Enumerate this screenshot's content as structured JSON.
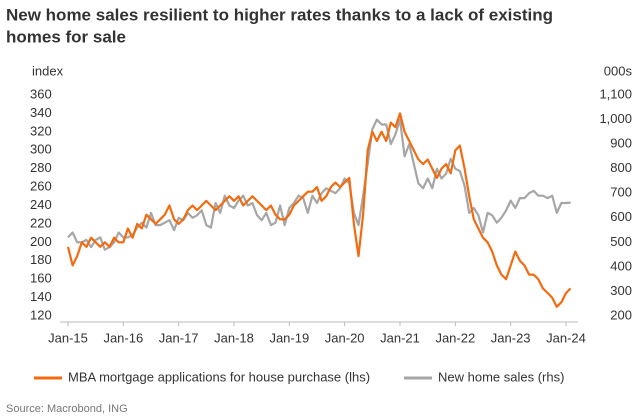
{
  "chart_data": {
    "type": "line",
    "title": [
      "New home sales resilient to higher rates thanks to a lack of existing",
      "homes for sale"
    ],
    "y_label": "index",
    "y2_label": "000s",
    "source": "Source: Macrobond, ING",
    "x": [
      "2015-01",
      "2015-02",
      "2015-03",
      "2015-04",
      "2015-05",
      "2015-06",
      "2015-07",
      "2015-08",
      "2015-09",
      "2015-10",
      "2015-11",
      "2015-12",
      "2016-01",
      "2016-02",
      "2016-03",
      "2016-04",
      "2016-05",
      "2016-06",
      "2016-07",
      "2016-08",
      "2016-09",
      "2016-10",
      "2016-11",
      "2016-12",
      "2017-01",
      "2017-02",
      "2017-03",
      "2017-04",
      "2017-05",
      "2017-06",
      "2017-07",
      "2017-08",
      "2017-09",
      "2017-10",
      "2017-11",
      "2017-12",
      "2018-01",
      "2018-02",
      "2018-03",
      "2018-04",
      "2018-05",
      "2018-06",
      "2018-07",
      "2018-08",
      "2018-09",
      "2018-10",
      "2018-11",
      "2018-12",
      "2019-01",
      "2019-02",
      "2019-03",
      "2019-04",
      "2019-05",
      "2019-06",
      "2019-07",
      "2019-08",
      "2019-09",
      "2019-10",
      "2019-11",
      "2019-12",
      "2020-01",
      "2020-02",
      "2020-03",
      "2020-04",
      "2020-05",
      "2020-06",
      "2020-07",
      "2020-08",
      "2020-09",
      "2020-10",
      "2020-11",
      "2020-12",
      "2021-01",
      "2021-02",
      "2021-03",
      "2021-04",
      "2021-05",
      "2021-06",
      "2021-07",
      "2021-08",
      "2021-09",
      "2021-10",
      "2021-11",
      "2021-12",
      "2022-01",
      "2022-02",
      "2022-03",
      "2022-04",
      "2022-05",
      "2022-06",
      "2022-07",
      "2022-08",
      "2022-09",
      "2022-10",
      "2022-11",
      "2022-12",
      "2023-01",
      "2023-02",
      "2023-03",
      "2023-04",
      "2023-05",
      "2023-06",
      "2023-07",
      "2023-08",
      "2023-09",
      "2023-10",
      "2023-11",
      "2023-12",
      "2024-01",
      "2024-02"
    ],
    "series": [
      {
        "name": "MBA mortgage applications for house purchase (lhs)",
        "color": "#f26b10",
        "axis": "y",
        "values": [
          195,
          175,
          185,
          200,
          195,
          205,
          200,
          195,
          200,
          195,
          205,
          200,
          200,
          215,
          205,
          220,
          215,
          230,
          225,
          220,
          225,
          230,
          240,
          225,
          220,
          225,
          235,
          240,
          235,
          240,
          245,
          240,
          235,
          240,
          245,
          250,
          245,
          250,
          240,
          245,
          250,
          245,
          240,
          235,
          240,
          230,
          225,
          225,
          230,
          240,
          245,
          250,
          255,
          255,
          260,
          245,
          250,
          260,
          265,
          260,
          265,
          270,
          220,
          185,
          230,
          300,
          320,
          310,
          320,
          310,
          330,
          325,
          340,
          320,
          310,
          300,
          290,
          285,
          290,
          280,
          270,
          280,
          285,
          275,
          300,
          305,
          280,
          250,
          225,
          215,
          205,
          200,
          190,
          175,
          165,
          160,
          175,
          190,
          180,
          175,
          165,
          165,
          160,
          150,
          145,
          140,
          130,
          135,
          145,
          150
        ]
      },
      {
        "name": "New home sales (rhs)",
        "color": "#a6a6a6",
        "axis": "y2",
        "values": [
          520,
          540,
          500,
          500,
          510,
          480,
          510,
          520,
          470,
          480,
          500,
          540,
          520,
          520,
          530,
          560,
          580,
          560,
          620,
          570,
          570,
          580,
          590,
          550,
          600,
          590,
          620,
          600,
          610,
          630,
          570,
          560,
          660,
          620,
          690,
          650,
          640,
          670,
          690,
          650,
          660,
          610,
          590,
          620,
          570,
          580,
          650,
          570,
          640,
          660,
          690,
          680,
          620,
          690,
          660,
          700,
          720,
          710,
          700,
          720,
          760,
          740,
          620,
          570,
          690,
          820,
          960,
          1000,
          980,
          980,
          900,
          940,
          1000,
          850,
          900,
          820,
          740,
          720,
          760,
          720,
          800,
          760,
          780,
          840,
          800,
          790,
          730,
          620,
          640,
          610,
          540,
          620,
          610,
          580,
          600,
          630,
          670,
          640,
          680,
          680,
          700,
          710,
          690,
          690,
          680,
          690,
          620,
          660,
          660,
          662
        ]
      }
    ],
    "xticks": [
      {
        "value": "2015-01",
        "label": "Jan-15"
      },
      {
        "value": "2016-01",
        "label": "Jan-16"
      },
      {
        "value": "2017-01",
        "label": "Jan-17"
      },
      {
        "value": "2018-01",
        "label": "Jan-18"
      },
      {
        "value": "2019-01",
        "label": "Jan-19"
      },
      {
        "value": "2020-01",
        "label": "Jan-20"
      },
      {
        "value": "2021-01",
        "label": "Jan-21"
      },
      {
        "value": "2022-01",
        "label": "Jan-22"
      },
      {
        "value": "2023-01",
        "label": "Jan-23"
      },
      {
        "value": "2024-01",
        "label": "Jan-24"
      }
    ],
    "ylim": [
      120,
      360
    ],
    "yticks": [
      120,
      140,
      160,
      180,
      200,
      220,
      240,
      260,
      280,
      300,
      320,
      340,
      360
    ],
    "y2lim": [
      200,
      1100
    ],
    "y2ticks": [
      200,
      300,
      400,
      500,
      600,
      700,
      800,
      900,
      {
        "value": 1000,
        "label": "1,000"
      },
      {
        "value": 1100,
        "label": "1,100"
      }
    ],
    "grid": false,
    "legend": "bottom"
  }
}
